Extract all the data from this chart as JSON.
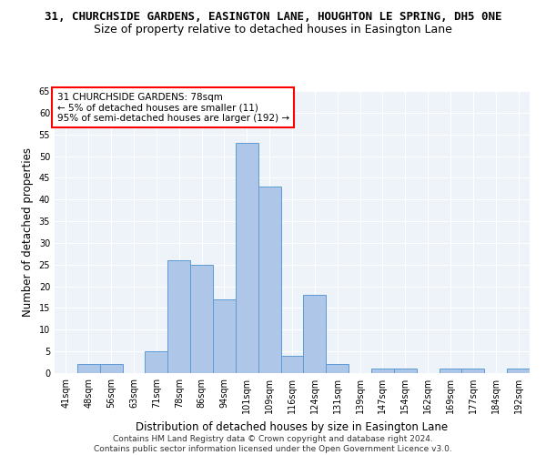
{
  "title": "31, CHURCHSIDE GARDENS, EASINGTON LANE, HOUGHTON LE SPRING, DH5 0NE",
  "subtitle": "Size of property relative to detached houses in Easington Lane",
  "xlabel": "Distribution of detached houses by size in Easington Lane",
  "ylabel": "Number of detached properties",
  "categories": [
    "41sqm",
    "48sqm",
    "56sqm",
    "63sqm",
    "71sqm",
    "78sqm",
    "86sqm",
    "94sqm",
    "101sqm",
    "109sqm",
    "116sqm",
    "124sqm",
    "131sqm",
    "139sqm",
    "147sqm",
    "154sqm",
    "162sqm",
    "169sqm",
    "177sqm",
    "184sqm",
    "192sqm"
  ],
  "values": [
    0,
    2,
    2,
    0,
    5,
    26,
    25,
    17,
    53,
    43,
    4,
    18,
    2,
    0,
    1,
    1,
    0,
    1,
    1,
    0,
    1
  ],
  "bar_color": "#aec6e8",
  "bar_edge_color": "#5b9bd5",
  "annotation_line1": "31 CHURCHSIDE GARDENS: 78sqm",
  "annotation_line2": "← 5% of detached houses are smaller (11)",
  "annotation_line3": "95% of semi-detached houses are larger (192) →",
  "annotation_box_color": "white",
  "annotation_box_edge_color": "red",
  "ylim": [
    0,
    65
  ],
  "yticks": [
    0,
    5,
    10,
    15,
    20,
    25,
    30,
    35,
    40,
    45,
    50,
    55,
    60,
    65
  ],
  "footer_line1": "Contains HM Land Registry data © Crown copyright and database right 2024.",
  "footer_line2": "Contains public sector information licensed under the Open Government Licence v3.0.",
  "background_color": "#eef2f9",
  "grid_color": "white",
  "title_fontsize": 9,
  "subtitle_fontsize": 9,
  "tick_fontsize": 7,
  "ylabel_fontsize": 8.5,
  "xlabel_fontsize": 8.5,
  "footer_fontsize": 6.5
}
